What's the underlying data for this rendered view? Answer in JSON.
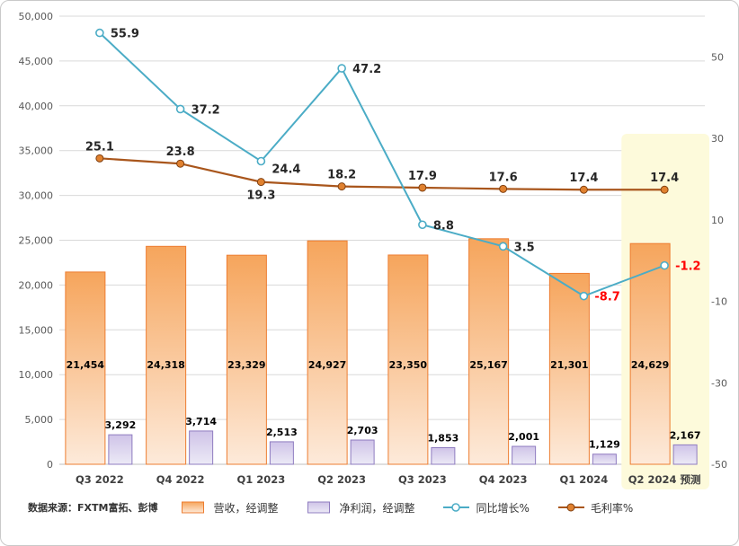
{
  "source_note": "数据来源：FXTM富拓、彭博",
  "colors": {
    "revenue_fill_top": "#f6a55c",
    "revenue_fill_bottom": "#fdeada",
    "revenue_border": "#ed7d31",
    "net_fill_top": "#cfc3e8",
    "net_fill_bottom": "#eceaf6",
    "net_border": "#8f7cc0",
    "yoy_line": "#4bacc6",
    "margin_line": "#a9561c",
    "margin_marker": "#e0812f",
    "margin_marker_border": "#7f3f10",
    "negative_label": "#ff0000",
    "highlight_bg": "#fdfadb",
    "grid": "#d9d9d9",
    "zero_axis": "#bfbfbf"
  },
  "chart_data": {
    "type": "bar+line combo",
    "categories": [
      "Q3 2022",
      "Q4 2022",
      "Q1 2023",
      "Q2 2023",
      "Q3 2023",
      "Q4 2023",
      "Q1 2024",
      "Q2 2024 预测"
    ],
    "highlight_category": "Q2 2024 预测",
    "grid": true,
    "legend_position": "bottom",
    "left_axis": {
      "min": 0,
      "max": 50000,
      "ticks": [
        {
          "v": 0,
          "label": "0"
        },
        {
          "v": 5000,
          "label": "5,000"
        },
        {
          "v": 10000,
          "label": "10,000"
        },
        {
          "v": 15000,
          "label": "15,000"
        },
        {
          "v": 20000,
          "label": "20,000"
        },
        {
          "v": 25000,
          "label": "25,000"
        },
        {
          "v": 30000,
          "label": "30,000"
        },
        {
          "v": 35000,
          "label": "35,000"
        },
        {
          "v": 40000,
          "label": "40,000"
        },
        {
          "v": 45000,
          "label": "45,000"
        },
        {
          "v": 50000,
          "label": "50,000"
        }
      ]
    },
    "right_axis": {
      "min": -50,
      "max": 60,
      "ticks": [
        {
          "v": 50,
          "label": "50"
        },
        {
          "v": 30,
          "label": "30"
        },
        {
          "v": 10,
          "label": "10"
        },
        {
          "v": -10,
          "label": "-10"
        },
        {
          "v": -30,
          "label": "-30"
        },
        {
          "v": -50,
          "label": "-50"
        }
      ]
    },
    "series": [
      {
        "name": "营收，经调整",
        "type": "bar",
        "axis": "left",
        "values": [
          21454,
          24318,
          23329,
          24927,
          23350,
          25167,
          21301,
          24629
        ],
        "labels": [
          "21,454",
          "24,318",
          "23,329",
          "24,927",
          "23,350",
          "25,167",
          "21,301",
          "24,629"
        ]
      },
      {
        "name": "净利润，经调整",
        "type": "bar",
        "axis": "left",
        "values": [
          3292,
          3714,
          2513,
          2703,
          1853,
          2001,
          1129,
          2167
        ],
        "labels": [
          "3,292",
          "3,714",
          "2,513",
          "2,703",
          "1,853",
          "2,001",
          "1,129",
          "2,167"
        ]
      },
      {
        "name": "同比增长%",
        "type": "line",
        "axis": "right",
        "values": [
          55.9,
          37.2,
          24.4,
          47.2,
          8.8,
          3.5,
          -8.7,
          -1.2
        ],
        "labels": [
          "55.9",
          "37.2",
          "24.4",
          "47.2",
          "8.8",
          "3.5",
          "-8.7",
          "-1.2"
        ]
      },
      {
        "name": "毛利率%",
        "type": "line",
        "axis": "right",
        "values": [
          25.1,
          23.8,
          19.3,
          18.2,
          17.9,
          17.6,
          17.4,
          17.4
        ],
        "labels": [
          "25.1",
          "23.8",
          "19.3",
          "18.2",
          "17.9",
          "17.6",
          "17.4",
          "17.4"
        ]
      }
    ]
  }
}
